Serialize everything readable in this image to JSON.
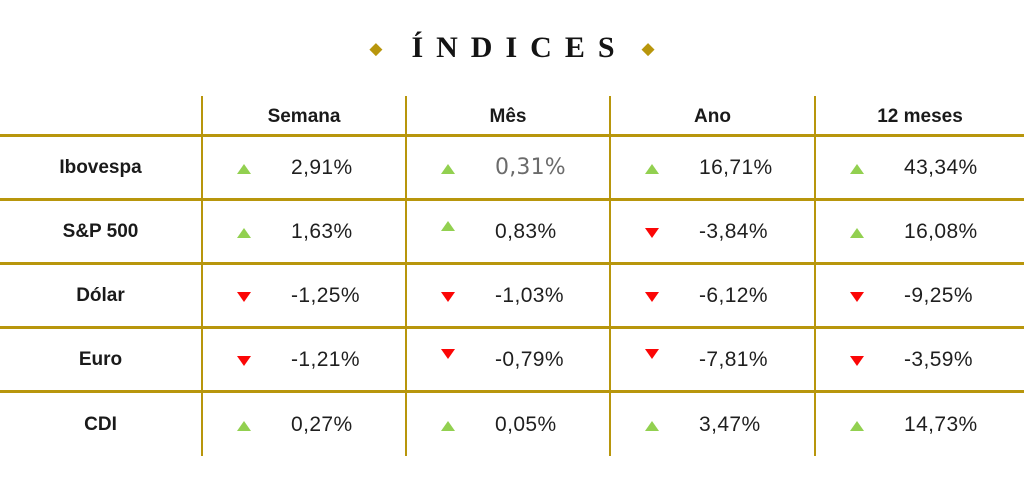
{
  "title": {
    "text": "ÍNDICES",
    "decor_left": "◆",
    "decor_right": "◆"
  },
  "colors": {
    "gold": "#B8960C",
    "up": "#92D050",
    "down": "#FB0606",
    "text": "#1F1F1F",
    "muted": "#6B6B6B",
    "background": "#FFFFFF"
  },
  "chart_data": {
    "type": "table",
    "title": "ÍNDICES",
    "unit": "%",
    "columns": [
      "Semana",
      "Mês",
      "Ano",
      "12 meses"
    ],
    "rows": [
      {
        "label": "Ibovespa",
        "cells": [
          {
            "display": "2,91%",
            "value": 2.91,
            "direction": "up"
          },
          {
            "display": "0,31%",
            "value": 0.31,
            "direction": "up",
            "muted": true
          },
          {
            "display": "16,71%",
            "value": 16.71,
            "direction": "up"
          },
          {
            "display": "43,34%",
            "value": 43.34,
            "direction": "up"
          }
        ]
      },
      {
        "label": "S&P 500",
        "cells": [
          {
            "display": "1,63%",
            "value": 1.63,
            "direction": "up"
          },
          {
            "display": "0,83%",
            "value": 0.83,
            "direction": "up",
            "arrow_raised": true
          },
          {
            "display": "-3,84%",
            "value": -3.84,
            "direction": "down"
          },
          {
            "display": "16,08%",
            "value": 16.08,
            "direction": "up"
          }
        ]
      },
      {
        "label": "Dólar",
        "cells": [
          {
            "display": "-1,25%",
            "value": -1.25,
            "direction": "down"
          },
          {
            "display": "-1,03%",
            "value": -1.03,
            "direction": "down"
          },
          {
            "display": "-6,12%",
            "value": -6.12,
            "direction": "down"
          },
          {
            "display": "-9,25%",
            "value": -9.25,
            "direction": "down"
          }
        ]
      },
      {
        "label": "Euro",
        "cells": [
          {
            "display": "-1,21%",
            "value": -1.21,
            "direction": "down"
          },
          {
            "display": "-0,79%",
            "value": -0.79,
            "direction": "down",
            "arrow_raised": true
          },
          {
            "display": "-7,81%",
            "value": -7.81,
            "direction": "down",
            "arrow_raised": true
          },
          {
            "display": "-3,59%",
            "value": -3.59,
            "direction": "down"
          }
        ]
      },
      {
        "label": "CDI",
        "cells": [
          {
            "display": "0,27%",
            "value": 0.27,
            "direction": "up"
          },
          {
            "display": "0,05%",
            "value": 0.05,
            "direction": "up"
          },
          {
            "display": "3,47%",
            "value": 3.47,
            "direction": "up"
          },
          {
            "display": "14,73%",
            "value": 14.73,
            "direction": "up"
          }
        ]
      }
    ]
  }
}
